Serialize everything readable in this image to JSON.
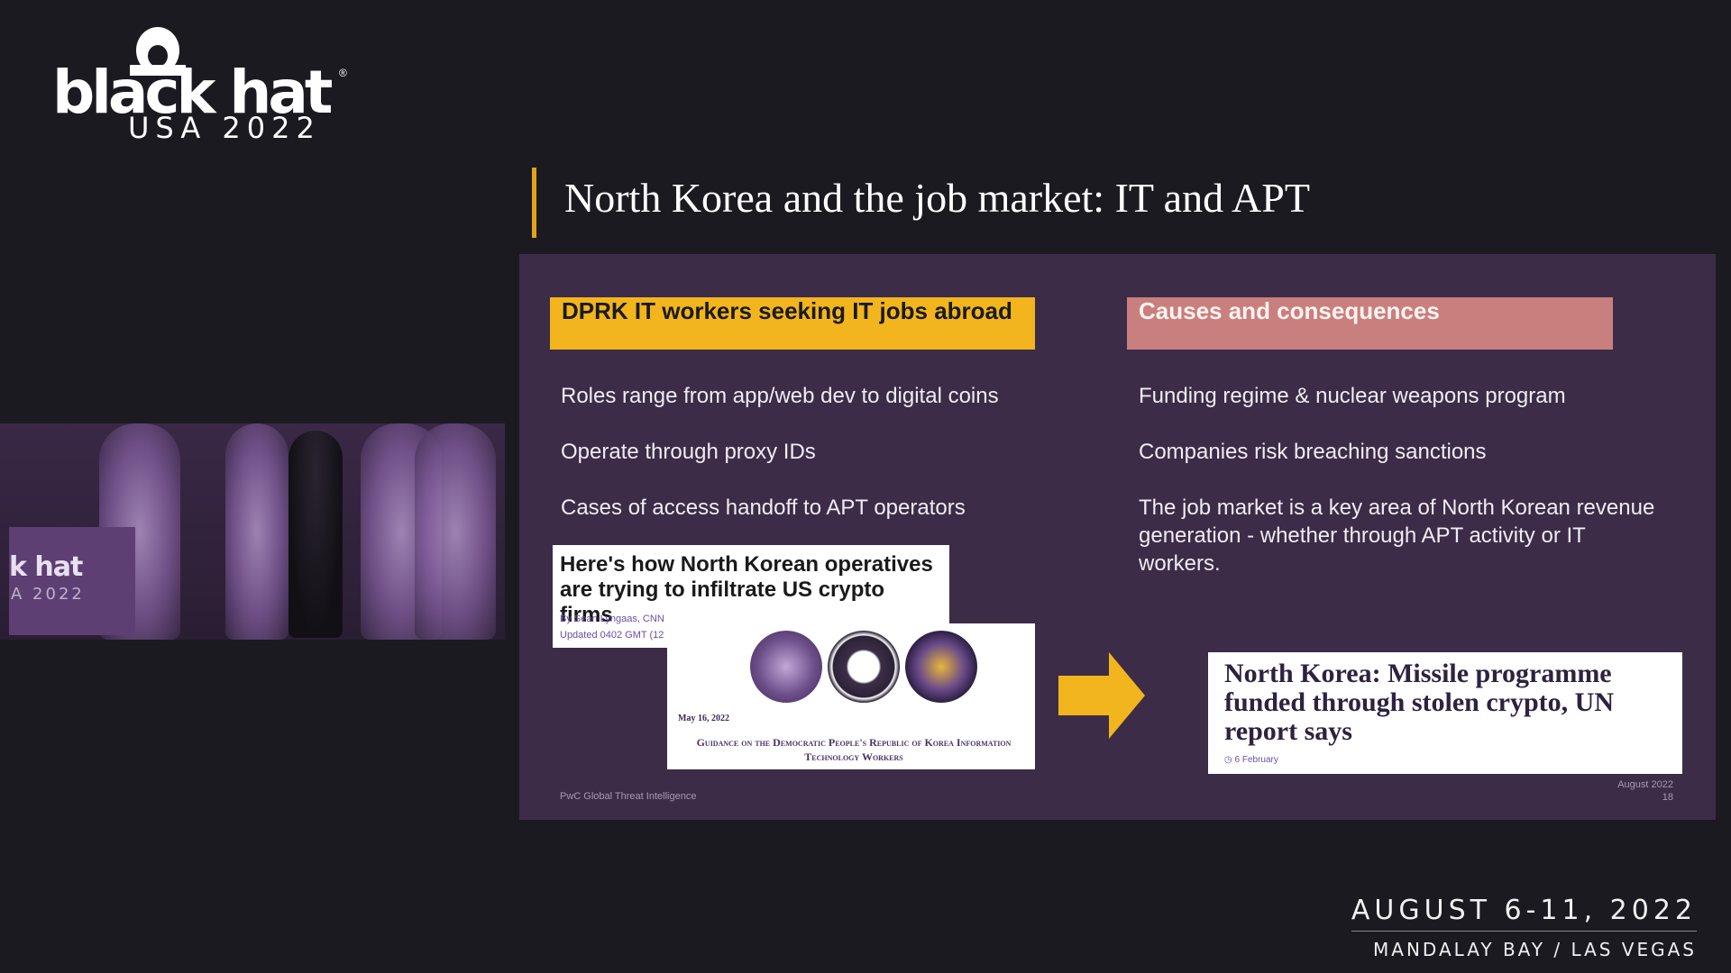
{
  "branding": {
    "logo_word": "black hat",
    "logo_registered": "®",
    "logo_sub": "USA 2022",
    "event_dates": "AUGUST 6-11, 2022",
    "event_venue": "MANDALAY BAY / LAS VEGAS"
  },
  "stage": {
    "podium_word": "k hat",
    "podium_sub": "A 2022"
  },
  "slide": {
    "title": "North Korea and the job market: IT and APT",
    "left_header": "DPRK IT workers seeking IT jobs abroad",
    "right_header": "Causes and consequences",
    "left_bullets": [
      "Roles range from app/web dev to digital coins",
      "Operate through proxy IDs",
      "Cases of access handoff to APT operators"
    ],
    "right_bullets": [
      "Funding regime & nuclear weapons program",
      "Companies risk breaching sanctions",
      "The job market is a key area of North Korean revenue generation - whether through APT activity or IT workers."
    ],
    "clip_cnn": {
      "headline": "Here's how North Korean operatives are trying to infiltrate US crypto firms",
      "byline": "By Sean Lyngaas, CNN",
      "updated": "Updated 0402 GMT (12"
    },
    "clip_guidance": {
      "date": "May 16, 2022",
      "title": "Guidance on the Democratic People's Republic of Korea Information Technology Workers"
    },
    "clip_bbc": {
      "headline": "North Korea: Missile programme funded through stolen crypto, UN report says",
      "date": "6 February"
    },
    "footer_left": "PwC Global Threat Intelligence",
    "footer_date": "August 2022",
    "page_number": "18"
  },
  "colors": {
    "background": "#1b1a21",
    "slide_panel": "#3c2c48",
    "accent_yellow": "#f2b51d",
    "accent_rose": "#c97f7e",
    "title_bar": "#e2a21a"
  },
  "icons": [
    "hat-person-icon",
    "arrow-right-icon",
    "treasury-seal-icon",
    "state-dept-seal-icon",
    "fbi-seal-icon",
    "clock-icon"
  ]
}
